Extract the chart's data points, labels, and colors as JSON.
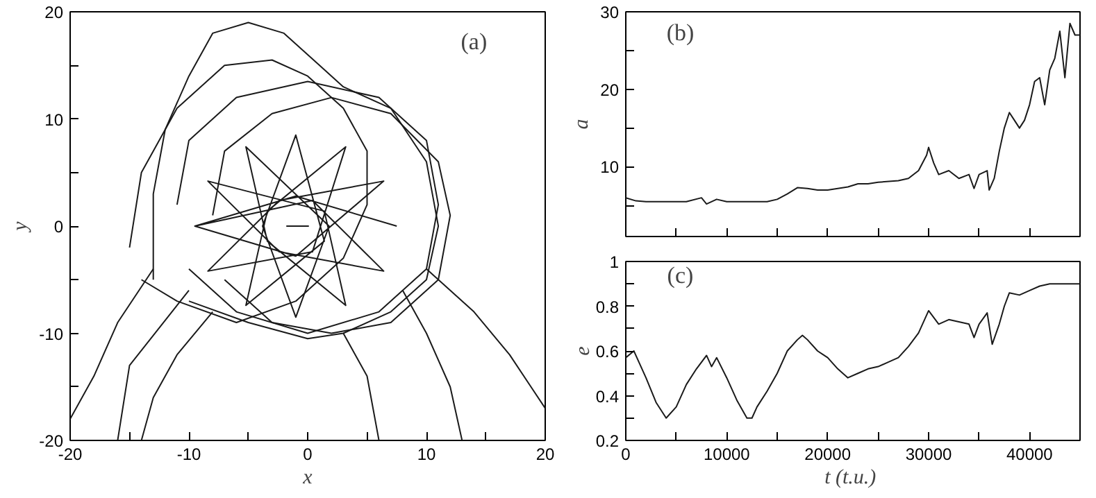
{
  "chart_data": [
    {
      "type": "line",
      "xlabel": "x",
      "ylabel": "y",
      "annotations": [
        "(a)"
      ],
      "xlim": [
        -20,
        20
      ],
      "ylim": [
        -20,
        20
      ],
      "xticks": [
        -20,
        {
          "value": -15,
          "label": null
        },
        -10,
        {
          "value": -5,
          "label": null
        },
        0,
        {
          "value": 5,
          "label": null
        },
        10,
        {
          "value": 15,
          "label": null
        },
        20
      ],
      "yticks": [
        -20,
        {
          "value": -15,
          "label": null
        },
        -10,
        {
          "value": -5,
          "label": null
        },
        0,
        {
          "value": 5,
          "label": null
        },
        10,
        {
          "value": 15,
          "label": null
        },
        20
      ],
      "series": [
        {
          "color": "#1a1a1a",
          "x": [
            7.5,
            -1,
            -9.5,
            -1,
            6.4,
            -2.4,
            -8.4,
            0.4,
            3.2,
            -3.4,
            -5.2,
            1.4,
            -1,
            -3.8,
            -1,
            1.8,
            -5.2,
            -3.4,
            3.2,
            1.4,
            -8.4,
            -2.4,
            6.4,
            0.4,
            -9.5
          ],
          "values": [
            0,
            2.8,
            0,
            -2.8,
            4.2,
            2.4,
            -4.2,
            -2.4,
            7.4,
            1.4,
            -7.4,
            -1.4,
            8.5,
            0,
            -8.5,
            0,
            7.4,
            -1.4,
            -7.4,
            1.4,
            4.2,
            -2.4,
            -4.2,
            2.4,
            0
          ]
        },
        {
          "color": "#1a1a1a",
          "x": [
            -13,
            -13,
            -12,
            -10,
            -8,
            -5,
            -2,
            1,
            3,
            7,
            10,
            11,
            10,
            7,
            3,
            0,
            -5,
            -10
          ],
          "values": [
            -5,
            3,
            9,
            14,
            18,
            19,
            18,
            15,
            13,
            11,
            6,
            0,
            -5,
            -8,
            -10,
            -10.5,
            -9,
            -7
          ]
        },
        {
          "color": "#1a1a1a",
          "x": [
            -11,
            -10,
            -6,
            0,
            6,
            10,
            11,
            10,
            6,
            0,
            -6,
            -10
          ],
          "values": [
            2,
            8,
            12,
            13.5,
            12,
            8,
            2,
            -4,
            -8,
            -10,
            -8,
            -4
          ]
        },
        {
          "color": "#1a1a1a",
          "x": [
            -8,
            -7,
            -3,
            2,
            7,
            11,
            12,
            11,
            7,
            2,
            -3,
            -7
          ],
          "values": [
            1,
            7,
            10.5,
            12,
            10.5,
            6,
            1,
            -5,
            -9,
            -10,
            -9,
            -5
          ]
        },
        {
          "color": "#1a1a1a",
          "x": [
            -15,
            -14,
            -11,
            -7,
            -3,
            0,
            3,
            5,
            5,
            3,
            -1,
            -6,
            -11,
            -14
          ],
          "values": [
            -2,
            5,
            11,
            15,
            15.5,
            14,
            11,
            7,
            2,
            -3,
            -7,
            -9,
            -7,
            -5
          ]
        },
        {
          "color": "#1a1a1a",
          "x": [
            10,
            14,
            17,
            20
          ],
          "values": [
            -4,
            -8,
            -12,
            -17
          ]
        },
        {
          "color": "#1a1a1a",
          "x": [
            8,
            10,
            12,
            13
          ],
          "values": [
            -6,
            -10,
            -15,
            -20
          ]
        },
        {
          "color": "#1a1a1a",
          "x": [
            -13,
            -16,
            -18,
            -20
          ],
          "values": [
            -4,
            -9,
            -14,
            -18
          ]
        },
        {
          "color": "#1a1a1a",
          "x": [
            -8,
            -11,
            -13,
            -14
          ],
          "values": [
            -8,
            -12,
            -16,
            -20
          ]
        },
        {
          "color": "#1a1a1a",
          "x": [
            3,
            5,
            6
          ],
          "values": [
            -10,
            -14,
            -20
          ]
        },
        {
          "color": "#1a1a1a",
          "x": [
            -10,
            -15,
            -16
          ],
          "values": [
            -6,
            -13,
            -20
          ]
        },
        {
          "color": "#1a1a1a",
          "x": [
            -1.8,
            0.1
          ],
          "values": [
            0,
            0
          ]
        }
      ]
    },
    {
      "type": "line",
      "ylabel": "a",
      "annotations": [
        "(b)"
      ],
      "xlim": [
        0,
        45000
      ],
      "ylim": [
        1,
        30
      ],
      "tick_labels": "y",
      "xticks": [
        {
          "value": 0,
          "label": null
        },
        {
          "value": 5000,
          "label": null
        },
        {
          "value": 10000,
          "label": null
        },
        {
          "value": 15000,
          "label": null
        },
        {
          "value": 20000,
          "label": null
        },
        {
          "value": 25000,
          "label": null
        },
        {
          "value": 30000,
          "label": null
        },
        {
          "value": 35000,
          "label": null
        },
        {
          "value": 40000,
          "label": null
        },
        {
          "value": 45000,
          "label": null
        }
      ],
      "yticks": [
        {
          "value": 5,
          "label": null
        },
        10,
        {
          "value": 15,
          "label": null
        },
        20,
        {
          "value": 25,
          "label": null
        },
        30
      ],
      "series": [
        {
          "color": "#1a1a1a",
          "x": [
            0,
            1000,
            2000,
            4000,
            6000,
            7500,
            8000,
            9000,
            10000,
            12000,
            14000,
            15000,
            16000,
            17000,
            18000,
            19000,
            20000,
            22000,
            23000,
            24000,
            25000,
            27000,
            28000,
            29000,
            29800,
            30000,
            30500,
            31000,
            32000,
            33000,
            34000,
            34500,
            35000,
            35800,
            36000,
            36500,
            37000,
            37500,
            38000,
            38500,
            39000,
            39500,
            40000,
            40500,
            41000,
            41500,
            42000,
            42500,
            43000,
            43500,
            44000,
            44500,
            45000
          ],
          "values": [
            6,
            5.6,
            5.5,
            5.5,
            5.5,
            6,
            5.2,
            5.8,
            5.5,
            5.5,
            5.5,
            5.8,
            6.5,
            7.3,
            7.2,
            7,
            7,
            7.4,
            7.8,
            7.8,
            8,
            8.2,
            8.5,
            9.5,
            11.5,
            12.5,
            10.5,
            9,
            9.5,
            8.5,
            9,
            7.2,
            9,
            9.5,
            7,
            8.5,
            12,
            15,
            17,
            16,
            15,
            16,
            18,
            21,
            21.5,
            18,
            22.5,
            24,
            27.5,
            21.5,
            28.5,
            27,
            27
          ]
        }
      ]
    },
    {
      "type": "line",
      "xlabel": "t  (t.u.)",
      "ylabel": "e",
      "annotations": [
        "(c)"
      ],
      "xlim": [
        0,
        45000
      ],
      "ylim": [
        0.2,
        1
      ],
      "xticks": [
        0,
        {
          "value": 5000,
          "label": null
        },
        10000,
        {
          "value": 15000,
          "label": null
        },
        20000,
        {
          "value": 25000,
          "label": null
        },
        30000,
        {
          "value": 35000,
          "label": null
        },
        40000
      ],
      "yticks": [
        0.2,
        {
          "value": 0.3,
          "label": null
        },
        0.4,
        {
          "value": 0.5,
          "label": null
        },
        0.6,
        {
          "value": 0.7,
          "label": null
        },
        0.8,
        {
          "value": 0.9,
          "label": null
        },
        1
      ],
      "series": [
        {
          "color": "#1a1a1a",
          "x": [
            0,
            800,
            2000,
            3000,
            4000,
            5000,
            6000,
            7000,
            8000,
            8500,
            9000,
            10000,
            11000,
            12000,
            12500,
            13000,
            14000,
            15000,
            16000,
            17000,
            17500,
            18000,
            19000,
            20000,
            21000,
            22000,
            23000,
            24000,
            25000,
            26000,
            27000,
            28000,
            29000,
            30000,
            31000,
            32000,
            33000,
            34000,
            34500,
            35000,
            35800,
            36300,
            37000,
            37500,
            38000,
            39000,
            40000,
            41000,
            42000,
            43000,
            44000,
            45000
          ],
          "values": [
            0.57,
            0.6,
            0.48,
            0.37,
            0.3,
            0.35,
            0.45,
            0.52,
            0.58,
            0.53,
            0.57,
            0.48,
            0.38,
            0.3,
            0.3,
            0.35,
            0.42,
            0.5,
            0.6,
            0.65,
            0.67,
            0.65,
            0.6,
            0.57,
            0.52,
            0.48,
            0.5,
            0.52,
            0.53,
            0.55,
            0.57,
            0.62,
            0.68,
            0.78,
            0.72,
            0.74,
            0.73,
            0.72,
            0.66,
            0.72,
            0.77,
            0.63,
            0.72,
            0.8,
            0.86,
            0.85,
            0.87,
            0.89,
            0.9,
            0.9,
            0.9,
            0.9
          ]
        }
      ]
    }
  ]
}
